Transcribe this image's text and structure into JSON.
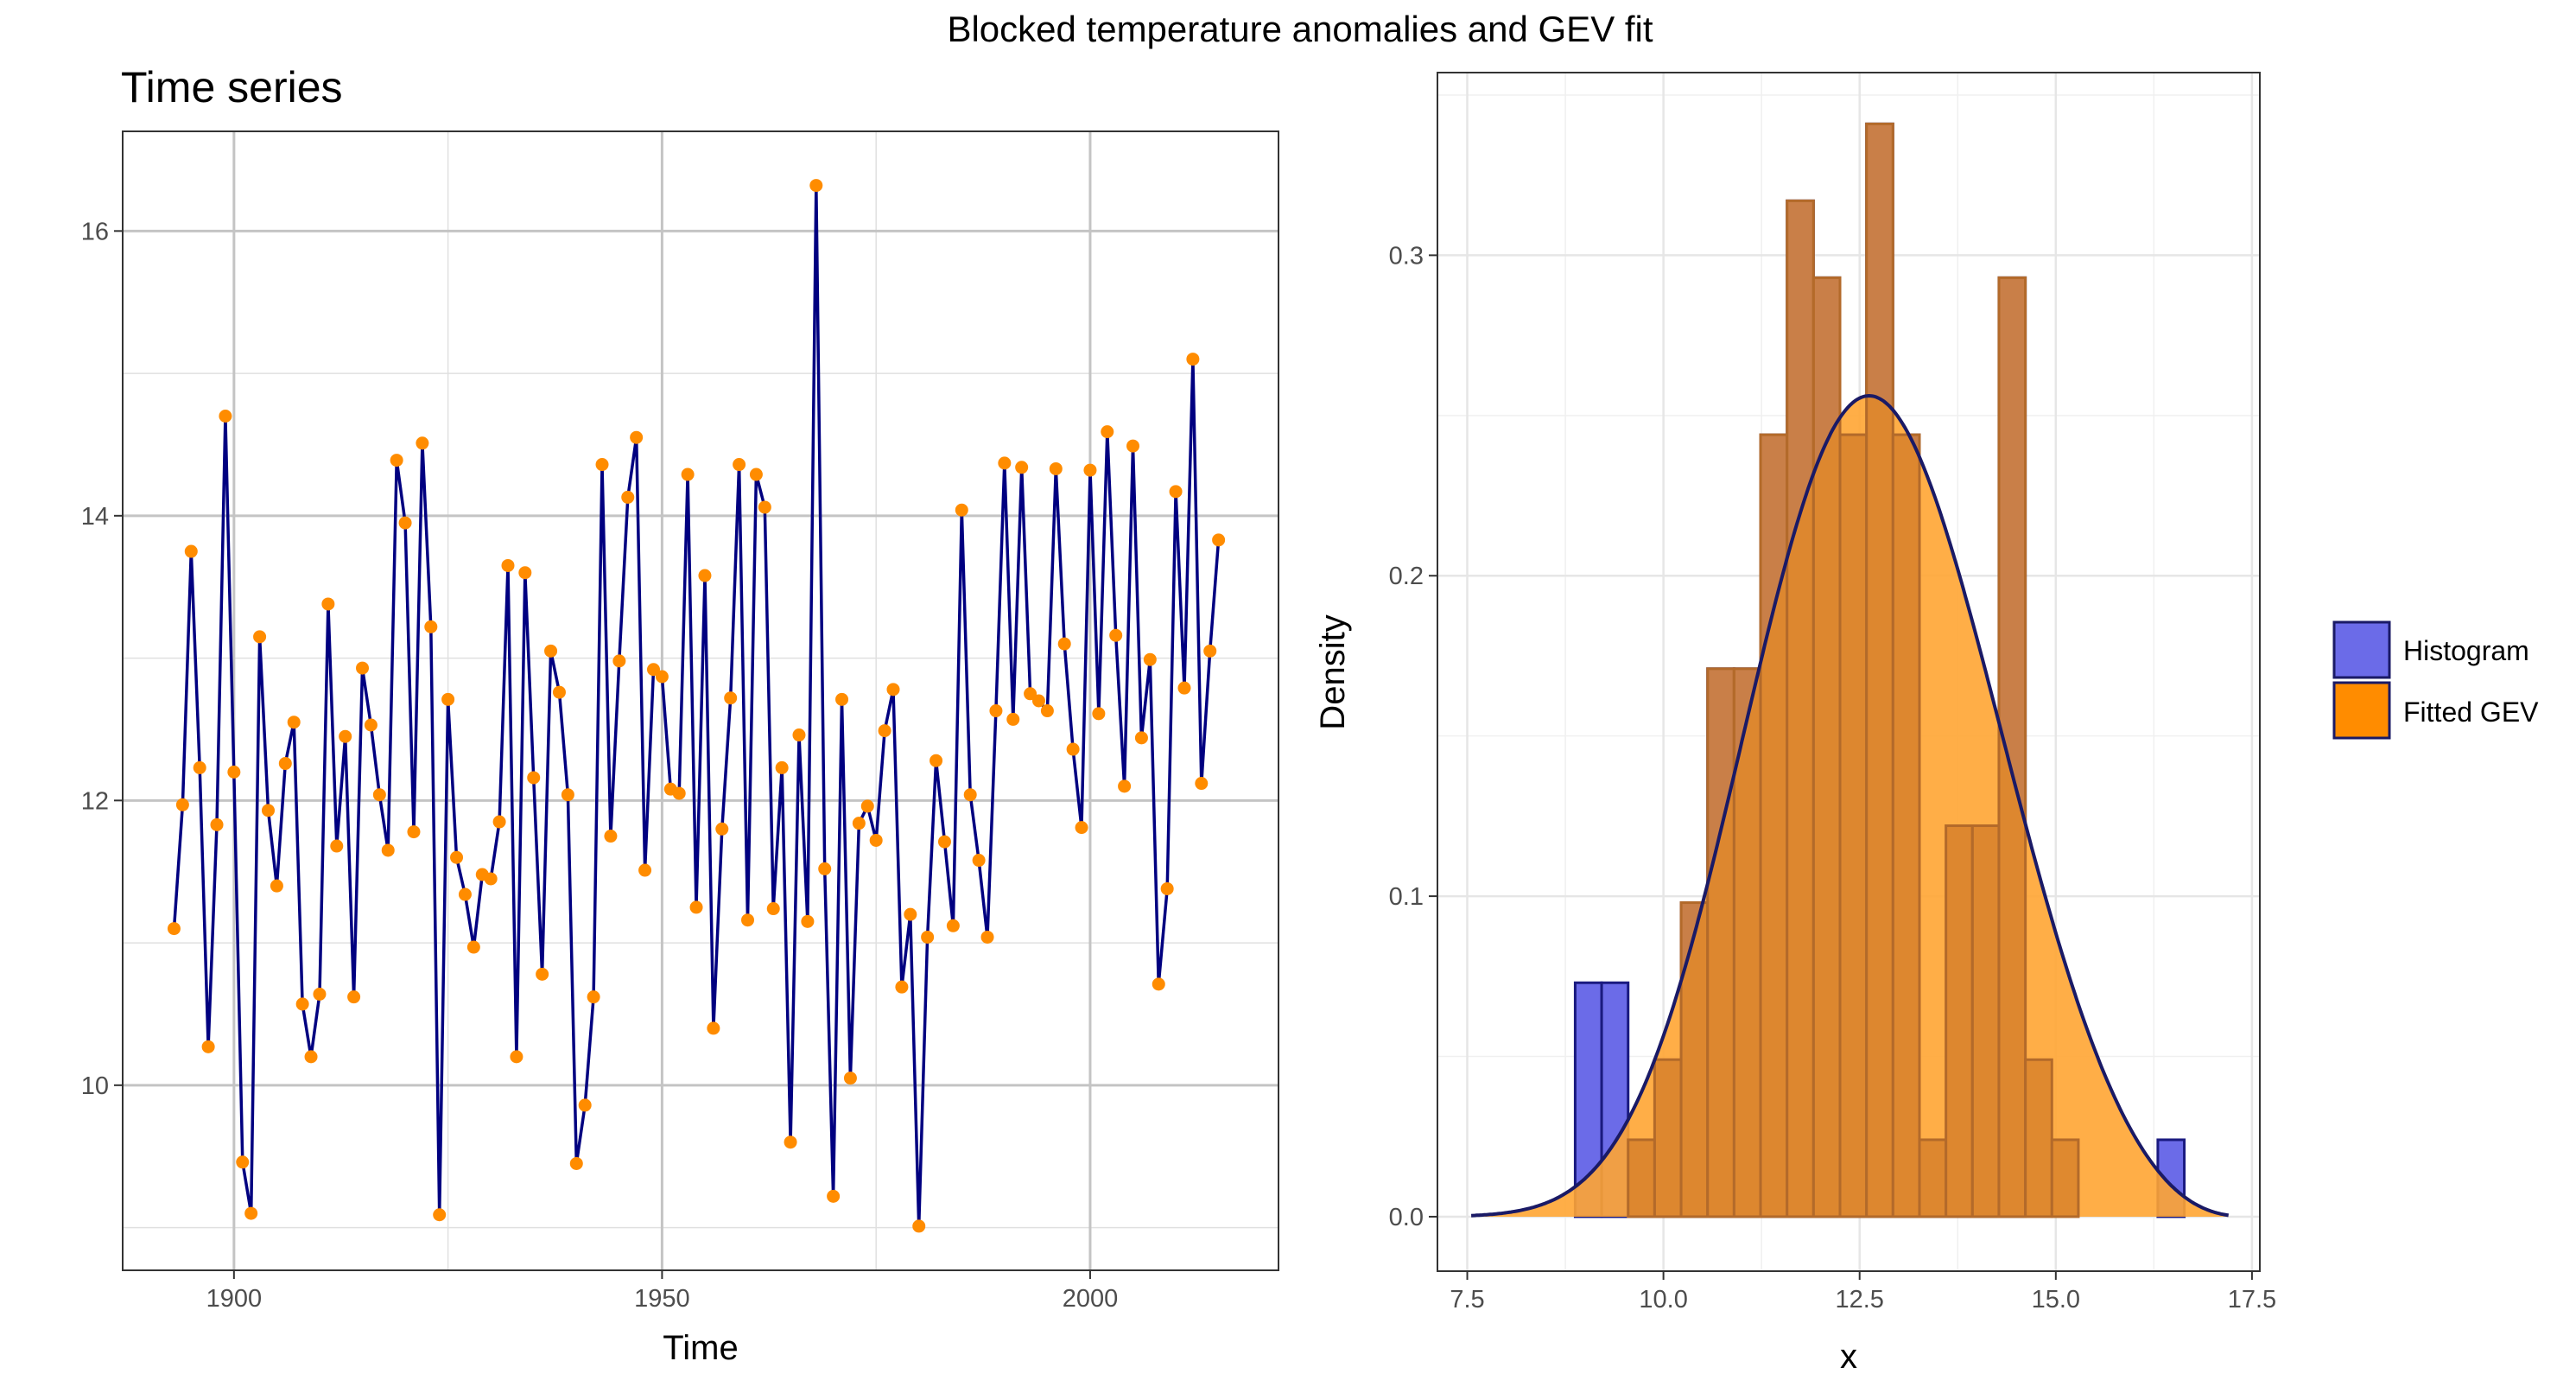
{
  "figure": {
    "title": "Blocked temperature anomalies and GEV fit"
  },
  "chart_data": [
    {
      "type": "line",
      "title": "Time series",
      "xlabel": "Time",
      "ylabel": "",
      "xlim": [
        1887,
        2022
      ],
      "ylim": [
        8.7,
        16.7
      ],
      "x_ticks": [
        1900,
        1950,
        2000
      ],
      "x_tick_labels": [
        "1900",
        "1950",
        "2000"
      ],
      "y_ticks": [
        10,
        12,
        14,
        16
      ],
      "y_tick_labels": [
        "10",
        "12",
        "14",
        "16"
      ],
      "grid": true,
      "line_color": "#000080",
      "point_color": "#ff8c00",
      "x": [
        1893,
        1894,
        1895,
        1896,
        1897,
        1898,
        1899,
        1900,
        1901,
        1902,
        1903,
        1904,
        1905,
        1906,
        1907,
        1908,
        1909,
        1910,
        1911,
        1912,
        1913,
        1914,
        1915,
        1916,
        1917,
        1918,
        1919,
        1920,
        1921,
        1922,
        1923,
        1924,
        1925,
        1926,
        1927,
        1928,
        1929,
        1930,
        1931,
        1932,
        1933,
        1934,
        1935,
        1936,
        1937,
        1938,
        1939,
        1940,
        1941,
        1942,
        1943,
        1944,
        1945,
        1946,
        1947,
        1948,
        1949,
        1950,
        1951,
        1952,
        1953,
        1954,
        1955,
        1956,
        1957,
        1958,
        1959,
        1960,
        1961,
        1962,
        1963,
        1964,
        1965,
        1966,
        1967,
        1968,
        1969,
        1970,
        1971,
        1972,
        1973,
        1974,
        1975,
        1976,
        1977,
        1978,
        1979,
        1980,
        1981,
        1982,
        1983,
        1984,
        1985,
        1986,
        1987,
        1988,
        1989,
        1990,
        1991,
        1992,
        1993,
        1994,
        1995,
        1996,
        1997,
        1998,
        1999,
        2000,
        2001,
        2002,
        2003,
        2004,
        2005,
        2006,
        2007,
        2008,
        2009,
        2010,
        2011,
        2012,
        2013,
        2014,
        2015
      ],
      "values": [
        11.1,
        11.97,
        13.75,
        12.23,
        10.27,
        11.83,
        14.7,
        12.2,
        9.46,
        9.1,
        13.15,
        11.93,
        11.4,
        12.26,
        12.55,
        10.57,
        10.2,
        10.64,
        13.38,
        11.68,
        12.45,
        10.62,
        12.93,
        12.53,
        12.04,
        11.65,
        14.39,
        13.95,
        11.78,
        14.51,
        13.22,
        9.09,
        12.71,
        11.6,
        11.34,
        10.97,
        11.48,
        11.45,
        11.85,
        13.65,
        10.2,
        13.6,
        12.16,
        10.78,
        13.05,
        12.76,
        12.04,
        9.45,
        9.86,
        10.62,
        14.36,
        11.75,
        12.98,
        14.13,
        14.55,
        11.51,
        12.92,
        12.87,
        12.08,
        12.05,
        14.29,
        11.25,
        13.58,
        10.4,
        11.8,
        12.72,
        14.36,
        11.16,
        14.29,
        14.06,
        11.24,
        12.23,
        9.6,
        12.46,
        11.15,
        16.32,
        11.52,
        9.22,
        12.71,
        10.05,
        11.84,
        11.96,
        11.72,
        12.49,
        12.78,
        10.69,
        11.2,
        9.01,
        11.04,
        12.28,
        11.71,
        11.12,
        14.04,
        12.04,
        11.58,
        11.04,
        12.63,
        14.37,
        12.57,
        14.34,
        12.75,
        12.7,
        12.63,
        14.33,
        13.1,
        12.36,
        11.81,
        14.32,
        12.61,
        14.59,
        13.16,
        12.1,
        14.49,
        12.44,
        12.99,
        10.71,
        11.38,
        14.17,
        12.79,
        15.1,
        12.12,
        13.05,
        13.83
      ]
    },
    {
      "type": "bar",
      "title": "",
      "xlabel": "x",
      "ylabel": "Density",
      "xlim": [
        7.12,
        17.6
      ],
      "ylim": [
        -0.017,
        0.357
      ],
      "x_ticks": [
        7.5,
        10.0,
        12.5,
        15.0,
        17.5
      ],
      "x_tick_labels": [
        "7.5",
        "10.0",
        "12.5",
        "15.0",
        "17.5"
      ],
      "y_ticks": [
        0.0,
        0.1,
        0.2,
        0.3
      ],
      "y_tick_labels": [
        "0.0",
        "0.1",
        "0.2",
        "0.3"
      ],
      "grid": true,
      "legend_position": "right",
      "legend": [
        {
          "label": "Histogram",
          "color": "#6b6be8"
        },
        {
          "label": "Fitted GEV",
          "color": "#ff8c00"
        }
      ],
      "series": [
        {
          "name": "Histogram",
          "color": "#6b6be8",
          "bin_width": 0.3375,
          "bin_starts": [
            8.875,
            9.2125,
            9.55,
            9.8875,
            10.225,
            10.5625,
            10.9,
            11.2375,
            11.575,
            11.9125,
            12.25,
            12.5875,
            12.925,
            13.2625,
            13.6,
            13.9375,
            14.275,
            14.6125,
            14.95,
            15.2875,
            15.625,
            15.9625,
            16.3
          ],
          "values": [
            0.073,
            0.073,
            0.024,
            0.049,
            0.098,
            0.171,
            0.171,
            0.244,
            0.317,
            0.293,
            0.244,
            0.341,
            0.244,
            0.024,
            0.122,
            0.122,
            0.293,
            0.0,
            0.0,
            0.0,
            0.0,
            0.0,
            0.024
          ]
        },
        {
          "name": "Fitted GEV",
          "color": "#ff8c00",
          "bin_width": 0.3375,
          "bin_starts": [
            8.875,
            9.2125,
            9.55,
            9.8875,
            10.225,
            10.5625,
            10.9,
            11.2375,
            11.575,
            11.9125,
            12.25,
            12.5875,
            12.925,
            13.2625,
            13.6,
            13.9375,
            14.275,
            14.6125,
            14.95
          ],
          "values": [
            0.0,
            0.0,
            0.024,
            0.049,
            0.098,
            0.171,
            0.171,
            0.244,
            0.317,
            0.293,
            0.244,
            0.341,
            0.244,
            0.024,
            0.122,
            0.122,
            0.293,
            0.049,
            0.024
          ],
          "curve": {
            "mu": 12.15,
            "sigma": 1.5,
            "xi": -0.28,
            "x_range": [
              7.55,
              17.2
            ]
          }
        }
      ]
    }
  ]
}
